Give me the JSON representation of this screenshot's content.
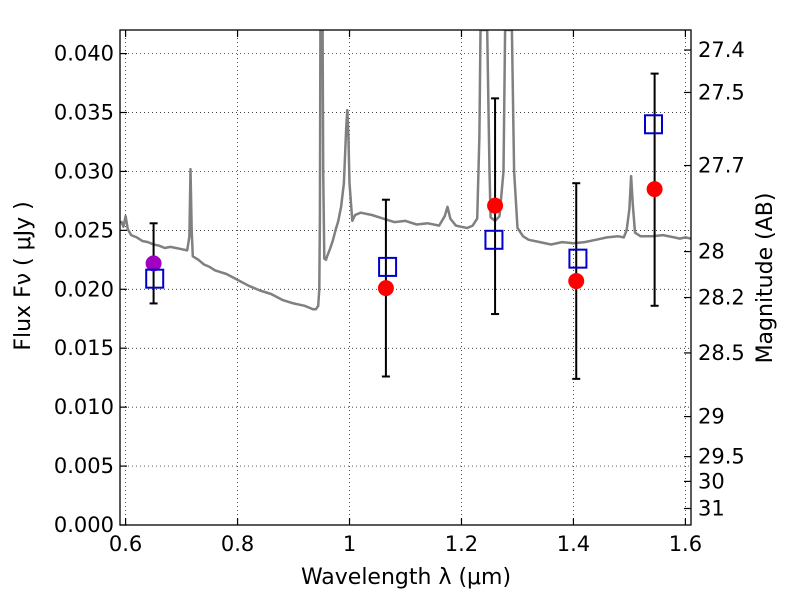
{
  "chart_data": {
    "type": "scatter",
    "xlabel": "Wavelength  λ (μm)",
    "ylabel": "Flux  Fν  ( μJy )",
    "y2label": "Magnitude (AB)",
    "xlim": [
      0.59,
      1.61
    ],
    "ylim": [
      0.0,
      0.042
    ],
    "grid": true,
    "x_ticks": [
      0.6,
      0.8,
      1.0,
      1.2,
      1.4,
      1.6
    ],
    "x_tick_labels": [
      "0.6",
      "0.8",
      "1",
      "1.2",
      "1.4",
      "1.6"
    ],
    "y_ticks": [
      0.0,
      0.005,
      0.01,
      0.015,
      0.02,
      0.025,
      0.03,
      0.035,
      0.04
    ],
    "y_tick_labels": [
      "0.000",
      "0.005",
      "0.010",
      "0.015",
      "0.020",
      "0.025",
      "0.030",
      "0.035",
      "0.040"
    ],
    "y2_ticks": [
      {
        "label": "27.4",
        "flux": 0.0403
      },
      {
        "label": "27.5",
        "flux": 0.0367
      },
      {
        "label": "27.7",
        "flux": 0.0305
      },
      {
        "label": "28",
        "flux": 0.0232
      },
      {
        "label": "28.2",
        "flux": 0.0193
      },
      {
        "label": "28.5",
        "flux": 0.0146
      },
      {
        "label": "29",
        "flux": 0.0092
      },
      {
        "label": "29.5",
        "flux": 0.0058
      },
      {
        "label": "30",
        "flux": 0.0037
      },
      {
        "label": "31",
        "flux": 0.0014
      }
    ],
    "model_spectrum": {
      "color": "#808080",
      "points": [
        [
          0.592,
          0.0258
        ],
        [
          0.596,
          0.0253
        ],
        [
          0.6,
          0.0262
        ],
        [
          0.604,
          0.0251
        ],
        [
          0.61,
          0.0246
        ],
        [
          0.62,
          0.0244
        ],
        [
          0.63,
          0.0241
        ],
        [
          0.64,
          0.024
        ],
        [
          0.65,
          0.0238
        ],
        [
          0.66,
          0.0237
        ],
        [
          0.67,
          0.0235
        ],
        [
          0.68,
          0.0236
        ],
        [
          0.69,
          0.0235
        ],
        [
          0.7,
          0.0234
        ],
        [
          0.71,
          0.0233
        ],
        [
          0.714,
          0.0245
        ],
        [
          0.716,
          0.0302
        ],
        [
          0.718,
          0.025
        ],
        [
          0.72,
          0.0228
        ],
        [
          0.73,
          0.0225
        ],
        [
          0.74,
          0.0221
        ],
        [
          0.75,
          0.0219
        ],
        [
          0.76,
          0.0216
        ],
        [
          0.78,
          0.0213
        ],
        [
          0.8,
          0.0208
        ],
        [
          0.82,
          0.0203
        ],
        [
          0.84,
          0.0199
        ],
        [
          0.86,
          0.0196
        ],
        [
          0.88,
          0.0191
        ],
        [
          0.9,
          0.0188
        ],
        [
          0.92,
          0.0186
        ],
        [
          0.93,
          0.0184
        ],
        [
          0.935,
          0.0183
        ],
        [
          0.94,
          0.0183
        ],
        [
          0.944,
          0.0186
        ],
        [
          0.946,
          0.02
        ],
        [
          0.947,
          0.026
        ],
        [
          0.948,
          0.042
        ],
        [
          0.952,
          0.042
        ],
        [
          0.953,
          0.03
        ],
        [
          0.955,
          0.0226
        ],
        [
          0.958,
          0.0225
        ],
        [
          0.96,
          0.0228
        ],
        [
          0.965,
          0.0234
        ],
        [
          0.97,
          0.0241
        ],
        [
          0.975,
          0.025
        ],
        [
          0.98,
          0.0258
        ],
        [
          0.985,
          0.027
        ],
        [
          0.99,
          0.029
        ],
        [
          0.994,
          0.0337
        ],
        [
          0.996,
          0.0352
        ],
        [
          0.998,
          0.033
        ],
        [
          1.0,
          0.029
        ],
        [
          1.005,
          0.0258
        ],
        [
          1.01,
          0.0263
        ],
        [
          1.02,
          0.0265
        ],
        [
          1.04,
          0.0263
        ],
        [
          1.06,
          0.026
        ],
        [
          1.08,
          0.0257
        ],
        [
          1.1,
          0.0258
        ],
        [
          1.12,
          0.0255
        ],
        [
          1.14,
          0.0256
        ],
        [
          1.16,
          0.0254
        ],
        [
          1.17,
          0.0262
        ],
        [
          1.175,
          0.027
        ],
        [
          1.18,
          0.026
        ],
        [
          1.19,
          0.0254
        ],
        [
          1.2,
          0.0253
        ],
        [
          1.21,
          0.0252
        ],
        [
          1.22,
          0.0254
        ],
        [
          1.228,
          0.026
        ],
        [
          1.232,
          0.033
        ],
        [
          1.234,
          0.042
        ],
        [
          1.246,
          0.042
        ],
        [
          1.25,
          0.03
        ],
        [
          1.252,
          0.0261
        ],
        [
          1.26,
          0.0258
        ],
        [
          1.268,
          0.0262
        ],
        [
          1.275,
          0.03
        ],
        [
          1.278,
          0.042
        ],
        [
          1.29,
          0.042
        ],
        [
          1.294,
          0.03
        ],
        [
          1.3,
          0.0252
        ],
        [
          1.31,
          0.0245
        ],
        [
          1.32,
          0.0242
        ],
        [
          1.34,
          0.024
        ],
        [
          1.36,
          0.0238
        ],
        [
          1.38,
          0.024
        ],
        [
          1.4,
          0.0239
        ],
        [
          1.42,
          0.024
        ],
        [
          1.44,
          0.0242
        ],
        [
          1.46,
          0.0244
        ],
        [
          1.48,
          0.0245
        ],
        [
          1.49,
          0.0244
        ],
        [
          1.495,
          0.025
        ],
        [
          1.5,
          0.0268
        ],
        [
          1.503,
          0.0296
        ],
        [
          1.506,
          0.0272
        ],
        [
          1.51,
          0.0248
        ],
        [
          1.52,
          0.0245
        ],
        [
          1.54,
          0.0245
        ],
        [
          1.56,
          0.0246
        ],
        [
          1.58,
          0.0244
        ],
        [
          1.59,
          0.0243
        ],
        [
          1.6,
          0.0244
        ],
        [
          1.61,
          0.0243
        ]
      ]
    },
    "series": [
      {
        "marker": "circle",
        "color": "#ff0000",
        "points": [
          {
            "x": 1.065,
            "y": 0.0201,
            "yerr_low": 0.0126,
            "yerr_high": 0.0276
          },
          {
            "x": 1.26,
            "y": 0.0271,
            "yerr_low": 0.0179,
            "yerr_high": 0.0362
          },
          {
            "x": 1.405,
            "y": 0.0207,
            "yerr_low": 0.0124,
            "yerr_high": 0.029
          },
          {
            "x": 1.545,
            "y": 0.0285,
            "yerr_low": 0.0186,
            "yerr_high": 0.0383
          }
        ]
      },
      {
        "marker": "circle",
        "color": "#a000c0",
        "points": [
          {
            "x": 0.65,
            "y": 0.0222,
            "yerr_low": 0.0188,
            "yerr_high": 0.0256
          }
        ]
      },
      {
        "marker": "open-square",
        "color": "#0000cc",
        "points": [
          {
            "x": 0.652,
            "y": 0.0209
          },
          {
            "x": 1.068,
            "y": 0.0219
          },
          {
            "x": 1.258,
            "y": 0.0242
          },
          {
            "x": 1.408,
            "y": 0.0226
          },
          {
            "x": 1.543,
            "y": 0.034
          }
        ]
      }
    ]
  }
}
